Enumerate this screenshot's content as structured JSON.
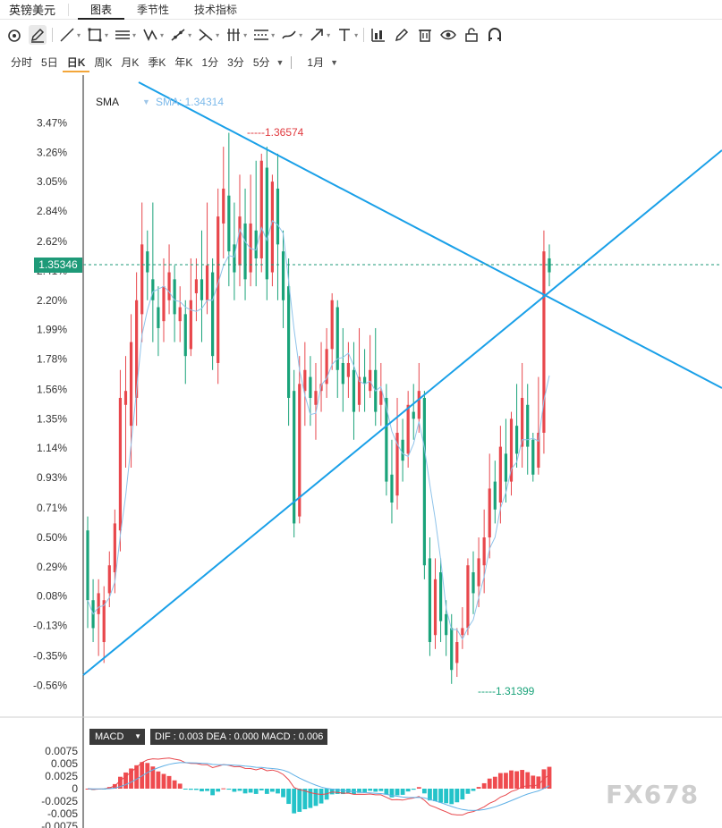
{
  "header": {
    "symbol": "英镑美元",
    "tabs": [
      {
        "label": "图表",
        "active": true
      },
      {
        "label": "季节性",
        "active": false
      },
      {
        "label": "技术指标",
        "active": false
      }
    ]
  },
  "toolbar": {
    "tools": [
      "reset-view-icon",
      "pen-icon",
      "trend-line-icon",
      "rectangle-icon",
      "parallel-lines-icon",
      "pattern-icon",
      "ray-icon",
      "fork-icon",
      "fibonacci-icon",
      "channel-icon",
      "brush-icon",
      "arrow-icon",
      "text-icon",
      "chart-type-icon",
      "edit-icon",
      "trash-icon",
      "eye-icon",
      "lock-icon",
      "magnet-icon"
    ]
  },
  "periods": {
    "items": [
      {
        "label": "分时",
        "active": false
      },
      {
        "label": "5日",
        "active": false
      },
      {
        "label": "日K",
        "active": true
      },
      {
        "label": "周K",
        "active": false
      },
      {
        "label": "月K",
        "active": false
      },
      {
        "label": "季K",
        "active": false
      },
      {
        "label": "年K",
        "active": false
      },
      {
        "label": "1分",
        "active": false
      },
      {
        "label": "3分",
        "active": false
      },
      {
        "label": "5分",
        "active": false
      }
    ],
    "range_label": "1月"
  },
  "indicator": {
    "sma_name": "SMA",
    "sma_value": "SMA: 1.34314",
    "current_price": "1.35346",
    "high_label": "-----1.36574",
    "low_label": "-----1.31399"
  },
  "macd": {
    "name": "MACD",
    "values": "DIF : 0.003  DEA : 0.000  MACD : 0.006",
    "ticks": [
      "0.0075",
      "0.005",
      "0.0025",
      "0",
      "-0.0025",
      "-0.005",
      "-0.0075"
    ]
  },
  "watermark": "FX678",
  "colors": {
    "up": "#e8474c",
    "down": "#1aa37a",
    "sma": "#8fc3ea",
    "trendline": "#1aa0e8",
    "dif": "#e8474c",
    "dea": "#5fb0e6",
    "macd_pos": "#ef4b4f",
    "macd_neg": "#24c3c9"
  },
  "chart_data": {
    "type": "candlestick",
    "y_axis_ticks": [
      "3.47%",
      "3.26%",
      "3.05%",
      "2.84%",
      "2.62%",
      "2.41%",
      "2.20%",
      "1.99%",
      "1.78%",
      "1.56%",
      "1.35%",
      "1.14%",
      "0.93%",
      "0.71%",
      "0.50%",
      "0.29%",
      "0.08%",
      "-0.13%",
      "-0.35%",
      "-0.56%"
    ],
    "y_range_pct": [
      -0.66,
      3.57
    ],
    "candles_pct": [
      [
        0.55,
        0.05,
        -0.15,
        0.65
      ],
      [
        0.05,
        -0.15,
        -0.25,
        0.2
      ],
      [
        -0.05,
        0.1,
        -0.35,
        0.2
      ],
      [
        -0.25,
        0.05,
        -0.4,
        0.15
      ],
      [
        0.1,
        0.3,
        0.0,
        0.4
      ],
      [
        0.25,
        0.6,
        0.1,
        0.7
      ],
      [
        0.55,
        1.5,
        0.4,
        1.7
      ],
      [
        1.45,
        1.55,
        1.0,
        1.8
      ],
      [
        1.3,
        1.9,
        1.0,
        2.1
      ],
      [
        1.5,
        2.2,
        1.3,
        2.4
      ],
      [
        2.1,
        2.6,
        1.9,
        2.9
      ],
      [
        2.55,
        2.4,
        2.2,
        2.7
      ],
      [
        2.35,
        2.2,
        1.9,
        2.9
      ],
      [
        2.15,
        2.0,
        1.8,
        2.3
      ],
      [
        2.05,
        2.3,
        1.9,
        2.5
      ],
      [
        2.2,
        2.4,
        2.1,
        2.6
      ],
      [
        2.35,
        2.1,
        1.9,
        2.45
      ],
      [
        2.05,
        2.15,
        1.9,
        2.3
      ],
      [
        2.1,
        1.8,
        1.6,
        2.2
      ],
      [
        1.85,
        2.2,
        1.8,
        2.5
      ],
      [
        2.25,
        2.35,
        2.05,
        2.5
      ],
      [
        2.35,
        2.2,
        1.9,
        2.7
      ],
      [
        2.2,
        2.45,
        2.1,
        2.9
      ],
      [
        2.4,
        1.8,
        1.7,
        2.5
      ],
      [
        1.75,
        2.8,
        1.6,
        3.0
      ],
      [
        2.75,
        3.0,
        2.5,
        3.3
      ],
      [
        2.95,
        2.55,
        2.3,
        3.4
      ],
      [
        2.6,
        2.4,
        2.2,
        2.9
      ],
      [
        2.45,
        2.8,
        2.3,
        3.1
      ],
      [
        2.75,
        2.35,
        2.2,
        3.0
      ],
      [
        2.4,
        2.75,
        2.3,
        3.1
      ],
      [
        2.7,
        2.5,
        2.3,
        3.2
      ],
      [
        2.5,
        3.2,
        2.4,
        3.25
      ],
      [
        3.15,
        2.35,
        2.2,
        3.3
      ],
      [
        2.4,
        3.05,
        2.3,
        3.1
      ],
      [
        3.0,
        2.6,
        2.2,
        3.25
      ],
      [
        2.55,
        2.2,
        2.0,
        2.7
      ],
      [
        2.3,
        1.5,
        1.3,
        2.5
      ],
      [
        1.55,
        0.6,
        0.5,
        1.7
      ],
      [
        0.65,
        1.6,
        0.6,
        1.8
      ],
      [
        1.55,
        1.7,
        1.3,
        1.9
      ],
      [
        1.65,
        1.5,
        1.3,
        1.8
      ],
      [
        1.45,
        1.55,
        1.2,
        1.75
      ],
      [
        1.55,
        1.6,
        1.4,
        1.9
      ],
      [
        1.6,
        1.85,
        1.5,
        2.0
      ],
      [
        1.85,
        2.2,
        1.7,
        2.25
      ],
      [
        2.15,
        1.7,
        1.5,
        2.2
      ],
      [
        1.75,
        1.6,
        1.4,
        2.0
      ],
      [
        1.65,
        1.75,
        1.5,
        1.9
      ],
      [
        1.7,
        1.4,
        1.2,
        1.9
      ],
      [
        1.45,
        1.65,
        1.4,
        2.0
      ],
      [
        1.65,
        1.6,
        1.4,
        1.85
      ],
      [
        1.55,
        1.7,
        1.5,
        1.95
      ],
      [
        1.7,
        1.4,
        1.3,
        2.0
      ],
      [
        1.45,
        1.55,
        1.3,
        1.75
      ],
      [
        1.5,
        0.9,
        0.8,
        1.6
      ],
      [
        0.95,
        0.75,
        0.6,
        1.2
      ],
      [
        0.8,
        1.25,
        0.7,
        1.5
      ],
      [
        1.2,
        1.05,
        0.9,
        1.35
      ],
      [
        1.1,
        1.45,
        1.0,
        1.55
      ],
      [
        1.4,
        1.35,
        1.2,
        1.6
      ],
      [
        1.35,
        1.55,
        1.25,
        1.75
      ],
      [
        1.5,
        0.3,
        0.2,
        1.55
      ],
      [
        0.35,
        -0.25,
        -0.35,
        0.5
      ],
      [
        -0.2,
        0.2,
        -0.3,
        0.35
      ],
      [
        0.25,
        -0.1,
        -0.25,
        0.35
      ],
      [
        -0.05,
        -0.2,
        -0.35,
        0.05
      ],
      [
        -0.15,
        -0.45,
        -0.55,
        -0.05
      ],
      [
        -0.4,
        -0.25,
        -0.5,
        -0.15
      ],
      [
        -0.2,
        -0.15,
        -0.3,
        0.0
      ],
      [
        -0.15,
        0.3,
        -0.2,
        0.35
      ],
      [
        0.25,
        0.1,
        -0.05,
        0.4
      ],
      [
        0.15,
        0.35,
        0.0,
        0.5
      ],
      [
        0.3,
        0.5,
        0.1,
        0.7
      ],
      [
        0.5,
        0.85,
        0.35,
        1.1
      ],
      [
        0.9,
        0.7,
        0.6,
        1.05
      ],
      [
        0.75,
        1.15,
        0.6,
        1.3
      ],
      [
        1.1,
        0.9,
        0.75,
        1.35
      ],
      [
        0.9,
        1.35,
        0.8,
        1.4
      ],
      [
        1.3,
        1.1,
        1.0,
        1.6
      ],
      [
        1.15,
        1.5,
        1.0,
        1.75
      ],
      [
        1.45,
        1.15,
        0.95,
        1.6
      ],
      [
        1.2,
        0.95,
        0.9,
        1.25
      ],
      [
        1.0,
        1.25,
        0.95,
        1.65
      ],
      [
        1.25,
        2.55,
        1.1,
        2.7
      ],
      [
        2.5,
        2.4,
        2.3,
        2.6
      ]
    ]
  }
}
